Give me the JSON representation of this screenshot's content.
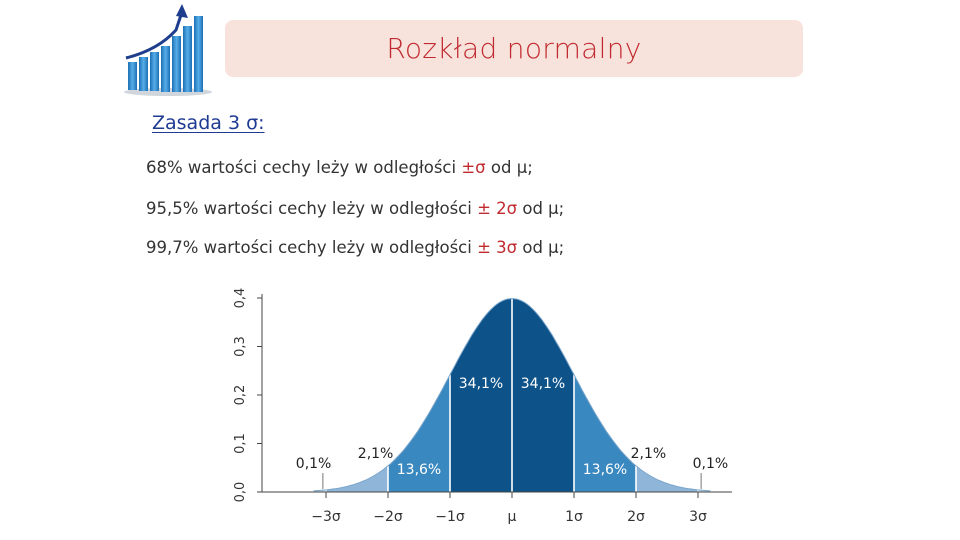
{
  "slide": {
    "title": "Rozkład normalny",
    "subtitle": "Zasada 3 σ:",
    "rules": [
      {
        "text": "68% wartości cechy leży w odległości ",
        "highlight": "±σ",
        "tail": " od μ;"
      },
      {
        "text": "95,5% wartości cechy leży w odległości ",
        "highlight": "± 2σ",
        "tail": " od μ;"
      },
      {
        "text": "99,7% wartości cechy leży w odległości ",
        "highlight": "± 3σ",
        "tail": " od μ;"
      }
    ],
    "colors": {
      "title": "#c0292f",
      "subtitle": "#1f3a93",
      "title_bg": "#f8e3dc"
    },
    "logo_icon": "growth-chart-icon"
  },
  "chart_data": {
    "type": "area",
    "distribution": "normal",
    "mean": 0,
    "sd": 1,
    "xlim": [
      -3.2,
      3.2
    ],
    "ylim": [
      0,
      0.4
    ],
    "y_ticks": [
      "0,0",
      "0,1",
      "0,2",
      "0,3",
      "0,4"
    ],
    "x_ticks": [
      "−3σ",
      "−2σ",
      "−1σ",
      "μ",
      "1σ",
      "2σ",
      "3σ"
    ],
    "regions": [
      {
        "from": -3,
        "to": -2,
        "label": "2,1%",
        "color": "#8fb6d9"
      },
      {
        "from": -2,
        "to": -1,
        "label": "13,6%",
        "color": "#3a88c0"
      },
      {
        "from": -1,
        "to": 0,
        "label": "34,1%",
        "color": "#0d5288"
      },
      {
        "from": 0,
        "to": 1,
        "label": "34,1%",
        "color": "#0d5288"
      },
      {
        "from": 1,
        "to": 2,
        "label": "13,6%",
        "color": "#3a88c0"
      },
      {
        "from": 2,
        "to": 3,
        "label": "2,1%",
        "color": "#8fb6d9"
      }
    ],
    "tails": [
      {
        "side": "left",
        "label": "0,1%"
      },
      {
        "side": "right",
        "label": "0,1%"
      }
    ]
  }
}
